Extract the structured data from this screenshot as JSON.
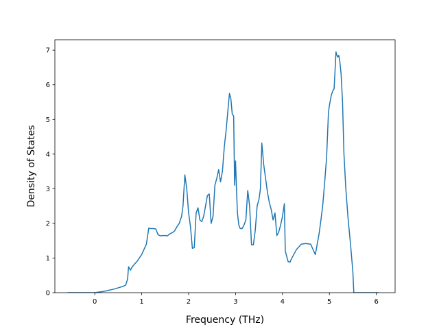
{
  "chart_data": {
    "type": "line",
    "title": "",
    "xlabel": "Frequency (THz)",
    "ylabel": "Density of States",
    "xlim": [
      -0.85,
      6.4
    ],
    "ylim": [
      0,
      7.3
    ],
    "x_ticks": [
      0,
      1,
      2,
      3,
      4,
      5,
      6
    ],
    "y_ticks": [
      0,
      1,
      2,
      3,
      4,
      5,
      6,
      7
    ],
    "x_tick_labels": [
      "0",
      "1",
      "2",
      "3",
      "4",
      "5",
      "6"
    ],
    "y_tick_labels": [
      "0",
      "1",
      "2",
      "3",
      "4",
      "5",
      "6",
      "7"
    ],
    "grid": false,
    "legend": "none",
    "series": [
      {
        "color": "#1f77b4",
        "x": [
          -0.58,
          -0.3,
          0.0,
          0.1,
          0.2,
          0.3,
          0.4,
          0.5,
          0.6,
          0.66,
          0.7,
          0.72,
          0.76,
          0.8,
          0.85,
          0.9,
          0.95,
          1.0,
          1.05,
          1.1,
          1.15,
          1.2,
          1.25,
          1.3,
          1.35,
          1.4,
          1.45,
          1.5,
          1.55,
          1.6,
          1.65,
          1.7,
          1.75,
          1.8,
          1.85,
          1.88,
          1.92,
          1.96,
          2.0,
          2.04,
          2.08,
          2.12,
          2.16,
          2.2,
          2.24,
          2.28,
          2.32,
          2.36,
          2.4,
          2.44,
          2.48,
          2.52,
          2.56,
          2.6,
          2.64,
          2.68,
          2.72,
          2.76,
          2.8,
          2.84,
          2.87,
          2.9,
          2.93,
          2.96,
          2.98,
          3.0,
          3.02,
          3.04,
          3.07,
          3.1,
          3.14,
          3.18,
          3.22,
          3.26,
          3.3,
          3.34,
          3.38,
          3.42,
          3.46,
          3.5,
          3.53,
          3.56,
          3.6,
          3.64,
          3.68,
          3.72,
          3.76,
          3.8,
          3.84,
          3.88,
          3.92,
          3.96,
          4.0,
          4.04,
          4.06,
          4.08,
          4.12,
          4.16,
          4.2,
          4.3,
          4.4,
          4.5,
          4.6,
          4.65,
          4.7,
          4.74,
          4.78,
          4.82,
          4.86,
          4.9,
          4.94,
          4.98,
          5.0,
          5.04,
          5.08,
          5.1,
          5.12,
          5.14,
          5.16,
          5.18,
          5.2,
          5.22,
          5.25,
          5.28,
          5.31,
          5.35,
          5.4,
          5.45,
          5.5,
          5.52,
          5.55,
          5.6,
          5.8,
          6.05
        ],
        "y": [
          0.0,
          0.0,
          0.0,
          0.02,
          0.04,
          0.07,
          0.1,
          0.14,
          0.18,
          0.22,
          0.4,
          0.75,
          0.65,
          0.75,
          0.83,
          0.9,
          1.0,
          1.1,
          1.25,
          1.4,
          1.86,
          1.85,
          1.85,
          1.84,
          1.67,
          1.64,
          1.65,
          1.65,
          1.64,
          1.7,
          1.73,
          1.78,
          1.9,
          2.0,
          2.2,
          2.5,
          3.4,
          3.0,
          2.3,
          1.9,
          1.28,
          1.3,
          2.3,
          2.45,
          2.1,
          2.05,
          2.2,
          2.5,
          2.8,
          2.85,
          2.0,
          2.2,
          3.1,
          3.3,
          3.55,
          3.2,
          3.5,
          4.2,
          4.7,
          5.3,
          5.75,
          5.6,
          5.15,
          5.1,
          3.1,
          3.8,
          3.0,
          2.3,
          1.95,
          1.85,
          1.85,
          1.95,
          2.1,
          2.95,
          2.5,
          1.38,
          1.38,
          1.8,
          2.5,
          2.7,
          3.0,
          4.32,
          3.7,
          3.3,
          2.9,
          2.6,
          2.4,
          2.1,
          2.3,
          1.65,
          1.75,
          1.95,
          2.2,
          2.57,
          1.2,
          1.1,
          0.9,
          0.88,
          1.0,
          1.25,
          1.4,
          1.42,
          1.4,
          1.25,
          1.1,
          1.4,
          1.7,
          2.1,
          2.55,
          3.2,
          3.9,
          5.2,
          5.4,
          5.7,
          5.85,
          5.88,
          6.4,
          6.95,
          6.85,
          6.8,
          6.85,
          6.7,
          6.3,
          5.5,
          4.0,
          3.0,
          2.1,
          1.4,
          0.6,
          0.0,
          0.0,
          0.0,
          0.0,
          0.0
        ]
      }
    ]
  }
}
